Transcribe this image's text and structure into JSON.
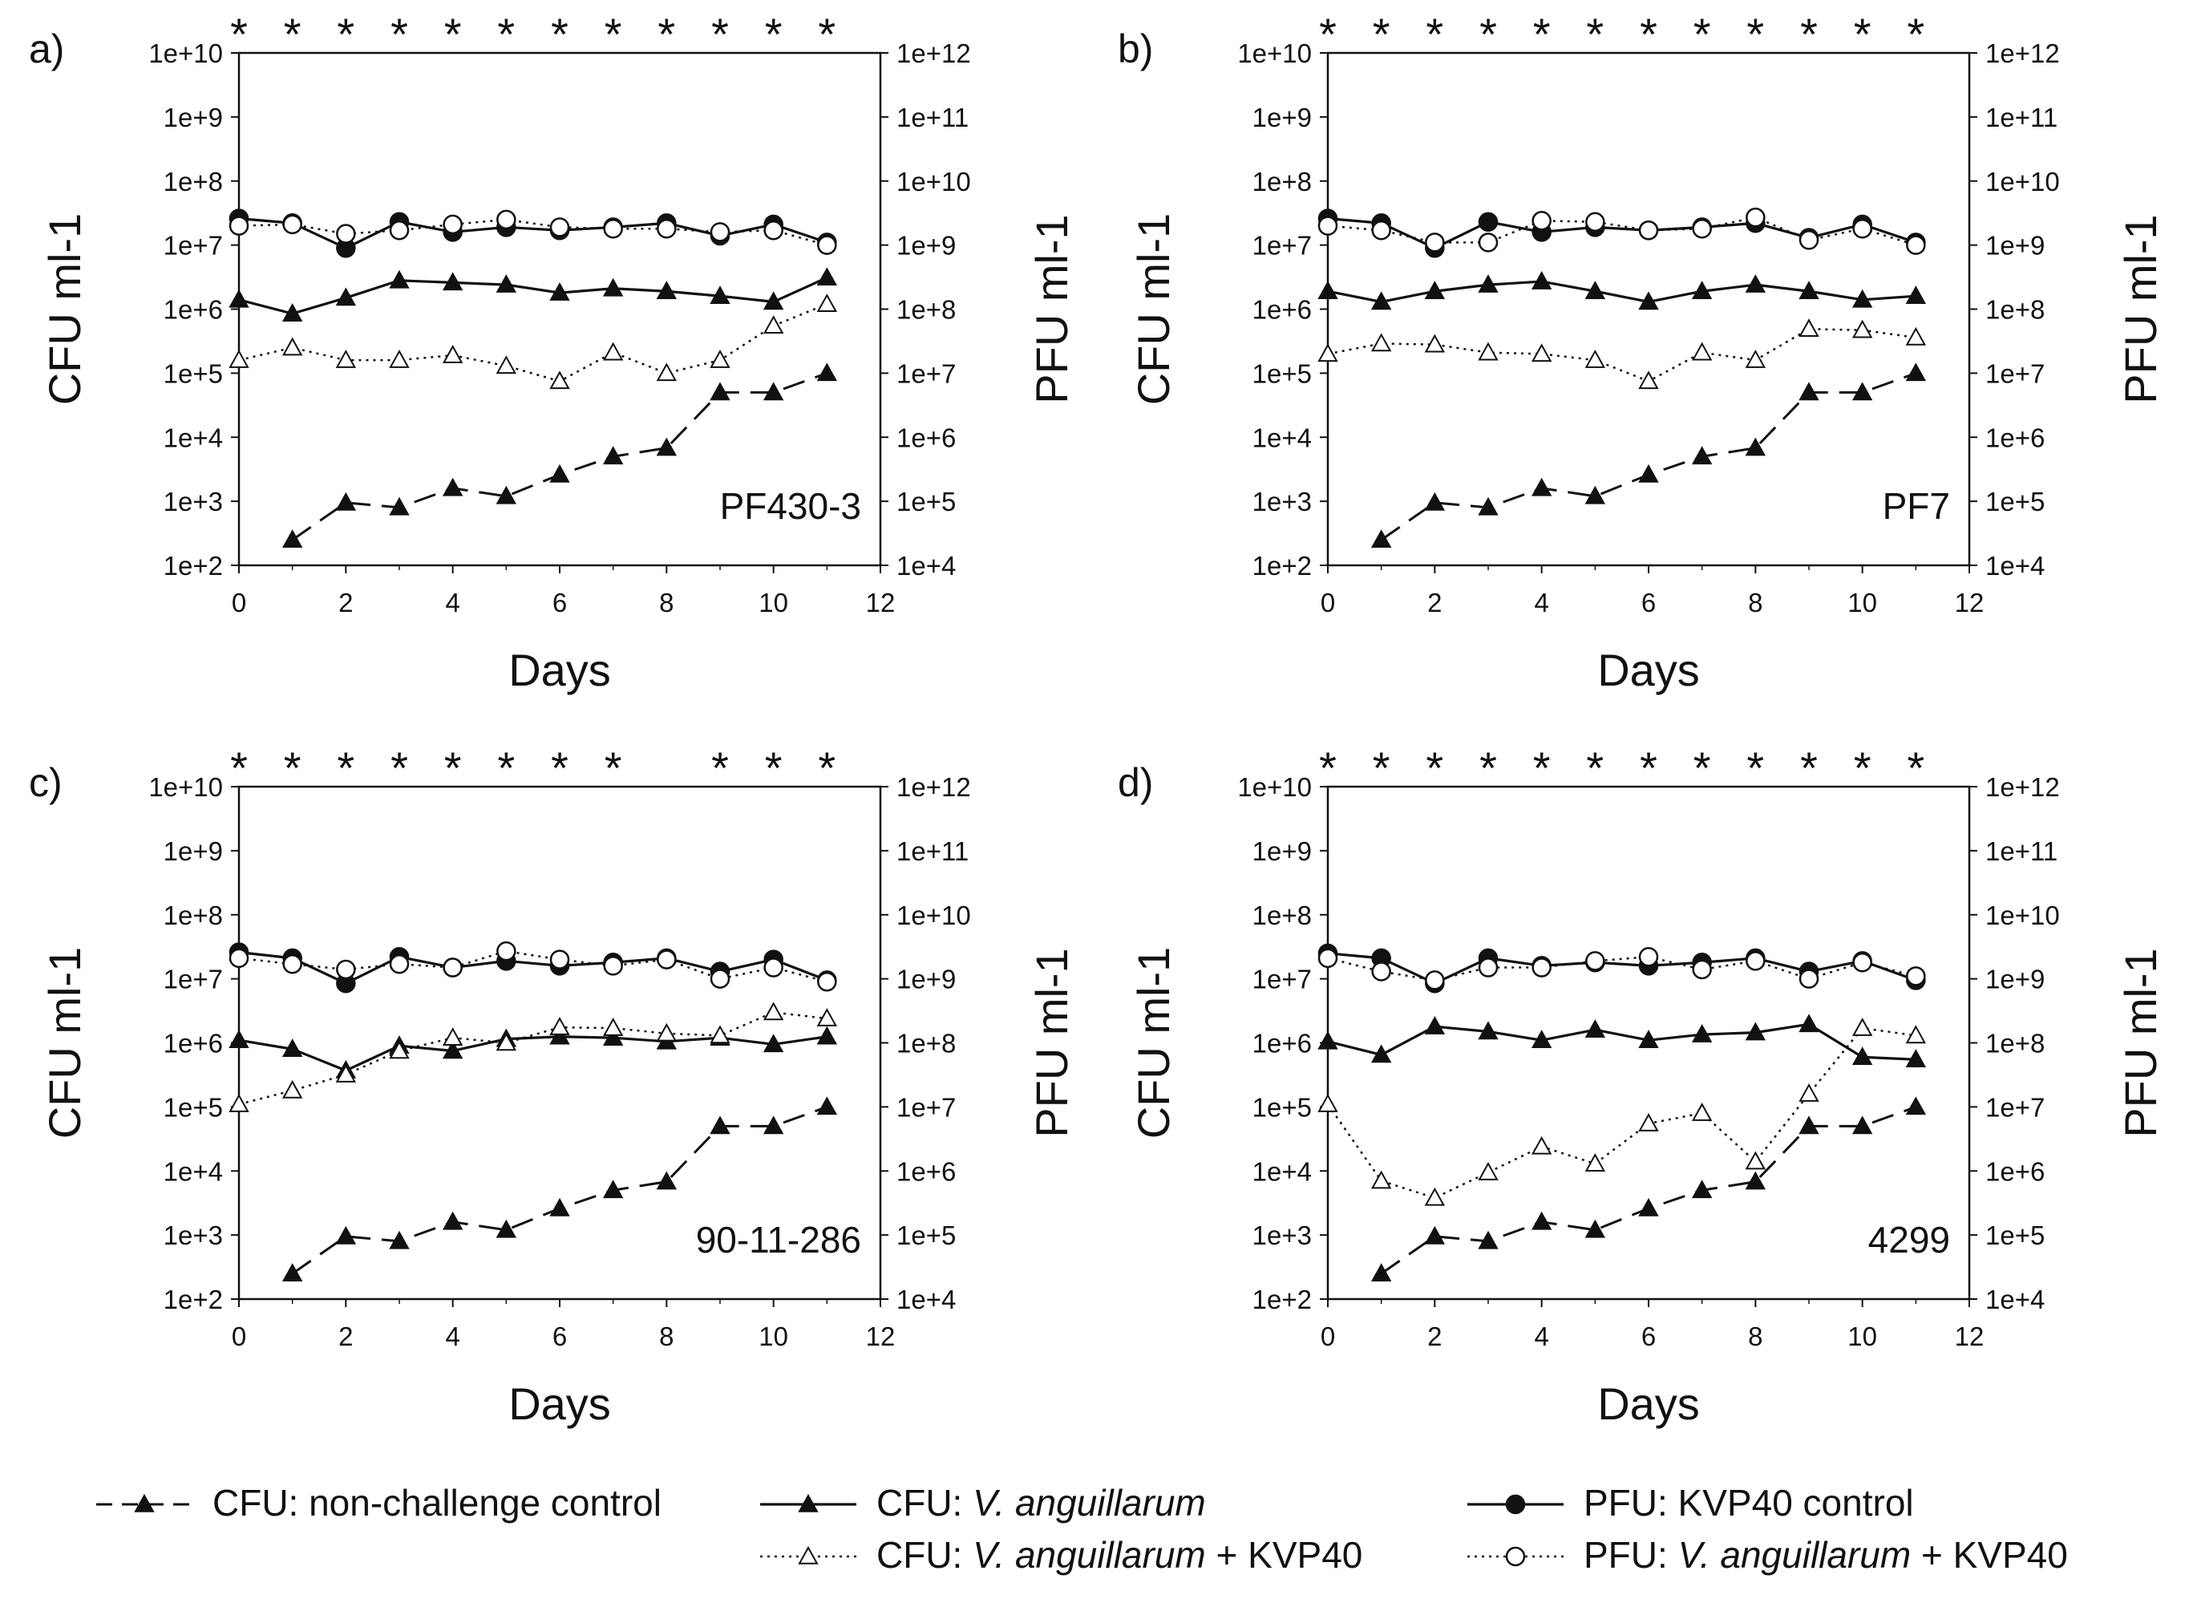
{
  "figure": {
    "legend": {
      "items": [
        {
          "key": "ctrl",
          "prefix": "CFU: non-challenge control",
          "italic": "",
          "suffix": "",
          "line": "dashed",
          "marker": "triangle-filled"
        },
        {
          "key": "va",
          "prefix": "CFU: ",
          "italic": "V. anguillarum",
          "suffix": "",
          "line": "solid",
          "marker": "triangle-filled"
        },
        {
          "key": "kvp",
          "prefix": "PFU: KVP40 control",
          "italic": "",
          "suffix": "",
          "line": "solid",
          "marker": "circle-filled"
        },
        {
          "key": "va_kvp",
          "prefix": "CFU: ",
          "italic": "V. anguillarum",
          "suffix": " + KVP40",
          "line": "dotted",
          "marker": "triangle-open"
        },
        {
          "key": "pfu_va_kvp",
          "prefix": "PFU: ",
          "italic": "V. anguillarum",
          "suffix": " + KVP40",
          "line": "dotted",
          "marker": "circle-open"
        }
      ]
    }
  },
  "chart_data": [
    {
      "type": "line",
      "panel": "a)",
      "strain": "PF430-3",
      "xlabel": "Days",
      "ylabel_left": "CFU ml-1",
      "ylabel_right": "PFU ml-1",
      "xlim": [
        0,
        12
      ],
      "xticks": [
        "0",
        "2",
        "4",
        "6",
        "8",
        "10",
        "12"
      ],
      "ylim_left_log10": [
        2,
        10
      ],
      "yticks_left": [
        "1e+2",
        "1e+3",
        "1e+4",
        "1e+5",
        "1e+6",
        "1e+7",
        "1e+8",
        "1e+9",
        "1e+10"
      ],
      "ylim_right_log10": [
        4,
        12
      ],
      "yticks_right": [
        "1e+4",
        "1e+5",
        "1e+6",
        "1e+7",
        "1e+8",
        "1e+9",
        "1e+10",
        "1e+11",
        "1e+12"
      ],
      "significance_days": [
        0,
        1,
        2,
        3,
        4,
        5,
        6,
        7,
        8,
        9,
        10,
        11
      ],
      "significance_symbol": "*",
      "series": [
        {
          "name": "CFU: non-challenge control",
          "axis": "left",
          "x": [
            1,
            2,
            3,
            4,
            5,
            6,
            7,
            8,
            9,
            10,
            11
          ],
          "y": [
            250,
            950,
            800,
            1600,
            1200,
            2600,
            5000,
            6800,
            50000,
            50000,
            100000
          ]
        },
        {
          "name": "CFU: V. anguillarum",
          "axis": "left",
          "x": [
            0,
            1,
            2,
            3,
            4,
            5,
            6,
            7,
            8,
            9,
            10,
            11
          ],
          "y": [
            1400000,
            850000,
            1500000,
            2800000,
            2600000,
            2400000,
            1800000,
            2100000,
            1900000,
            1600000,
            1300000,
            3100000
          ]
        },
        {
          "name": "PFU: KVP40 control",
          "axis": "right",
          "x": [
            0,
            1,
            2,
            3,
            4,
            5,
            6,
            7,
            8,
            9,
            10,
            11
          ],
          "y": [
            2600000000,
            2200000000,
            900000000,
            2300000000,
            1600000000,
            1900000000,
            1700000000,
            1900000000,
            2200000000,
            1400000000,
            2100000000,
            1100000000
          ]
        },
        {
          "name": "CFU: V. anguillarum + KVP40",
          "axis": "left",
          "x": [
            0,
            1,
            2,
            3,
            4,
            5,
            6,
            7,
            8,
            9,
            10,
            11
          ],
          "y": [
            160000,
            250000,
            160000,
            160000,
            190000,
            130000,
            75000,
            210000,
            100000,
            160000,
            550000,
            1200000
          ]
        },
        {
          "name": "PFU: V. anguillarum + KVP40",
          "axis": "right",
          "x": [
            0,
            1,
            2,
            3,
            4,
            5,
            6,
            7,
            8,
            9,
            10,
            11
          ],
          "y": [
            2000000000,
            2100000000,
            1500000000,
            1700000000,
            2100000000,
            2500000000,
            1900000000,
            1800000000,
            1800000000,
            1600000000,
            1700000000,
            1000000000
          ]
        }
      ]
    },
    {
      "type": "line",
      "panel": "b)",
      "strain": "PF7",
      "xlabel": "Days",
      "ylabel_left": "CFU ml-1",
      "ylabel_right": "PFU ml-1",
      "xlim": [
        0,
        12
      ],
      "xticks": [
        "0",
        "2",
        "4",
        "6",
        "8",
        "10",
        "12"
      ],
      "ylim_left_log10": [
        2,
        10
      ],
      "yticks_left": [
        "1e+2",
        "1e+3",
        "1e+4",
        "1e+5",
        "1e+6",
        "1e+7",
        "1e+8",
        "1e+9",
        "1e+10"
      ],
      "ylim_right_log10": [
        4,
        12
      ],
      "yticks_right": [
        "1e+4",
        "1e+5",
        "1e+6",
        "1e+7",
        "1e+8",
        "1e+9",
        "1e+10",
        "1e+11",
        "1e+12"
      ],
      "significance_days": [
        0,
        1,
        2,
        3,
        4,
        5,
        6,
        7,
        8,
        9,
        10,
        11
      ],
      "significance_symbol": "*",
      "series": [
        {
          "name": "CFU: non-challenge control",
          "axis": "left",
          "x": [
            1,
            2,
            3,
            4,
            5,
            6,
            7,
            8,
            9,
            10,
            11
          ],
          "y": [
            250,
            950,
            800,
            1600,
            1200,
            2600,
            5000,
            6800,
            50000,
            50000,
            100000
          ]
        },
        {
          "name": "CFU: V. anguillarum",
          "axis": "left",
          "x": [
            0,
            1,
            2,
            3,
            4,
            5,
            6,
            7,
            8,
            9,
            10,
            11
          ],
          "y": [
            1900000,
            1300000,
            1900000,
            2400000,
            2700000,
            1900000,
            1300000,
            1900000,
            2400000,
            1900000,
            1400000,
            1600000
          ]
        },
        {
          "name": "PFU: KVP40 control",
          "axis": "right",
          "x": [
            0,
            1,
            2,
            3,
            4,
            5,
            6,
            7,
            8,
            9,
            10,
            11
          ],
          "y": [
            2600000000,
            2200000000,
            900000000,
            2300000000,
            1600000000,
            1900000000,
            1700000000,
            1900000000,
            2200000000,
            1300000000,
            2100000000,
            1100000000
          ]
        },
        {
          "name": "CFU: V. anguillarum + KVP40",
          "axis": "left",
          "x": [
            0,
            1,
            2,
            3,
            4,
            5,
            6,
            7,
            8,
            9,
            10,
            11
          ],
          "y": [
            200000,
            290000,
            280000,
            210000,
            200000,
            160000,
            75000,
            210000,
            160000,
            490000,
            470000,
            360000
          ]
        },
        {
          "name": "PFU: V. anguillarum + KVP40",
          "axis": "right",
          "x": [
            0,
            1,
            2,
            3,
            4,
            5,
            6,
            7,
            8,
            9,
            10,
            11
          ],
          "y": [
            2000000000,
            1700000000,
            1100000000,
            1100000000,
            2400000000,
            2300000000,
            1700000000,
            1800000000,
            2700000000,
            1200000000,
            1800000000,
            1000000000
          ]
        }
      ]
    },
    {
      "type": "line",
      "panel": "c)",
      "strain": "90-11-286",
      "xlabel": "Days",
      "ylabel_left": "CFU ml-1",
      "ylabel_right": "PFU ml-1",
      "xlim": [
        0,
        12
      ],
      "xticks": [
        "0",
        "2",
        "4",
        "6",
        "8",
        "10",
        "12"
      ],
      "ylim_left_log10": [
        2,
        10
      ],
      "yticks_left": [
        "1e+2",
        "1e+3",
        "1e+4",
        "1e+5",
        "1e+6",
        "1e+7",
        "1e+8",
        "1e+9",
        "1e+10"
      ],
      "ylim_right_log10": [
        4,
        12
      ],
      "yticks_right": [
        "1e+4",
        "1e+5",
        "1e+6",
        "1e+7",
        "1e+8",
        "1e+9",
        "1e+10",
        "1e+11",
        "1e+12"
      ],
      "significance_days": [
        0,
        1,
        2,
        3,
        4,
        5,
        6,
        7,
        9,
        10,
        11
      ],
      "significance_symbol": "*",
      "series": [
        {
          "name": "CFU: non-challenge control",
          "axis": "left",
          "x": [
            1,
            2,
            3,
            4,
            5,
            6,
            7,
            8,
            9,
            10,
            11
          ],
          "y": [
            250,
            950,
            800,
            1600,
            1200,
            2600,
            5000,
            6800,
            50000,
            50000,
            100000
          ]
        },
        {
          "name": "CFU: V. anguillarum",
          "axis": "left",
          "x": [
            0,
            1,
            2,
            3,
            4,
            5,
            6,
            7,
            8,
            9,
            10,
            11
          ],
          "y": [
            1100000,
            800000,
            370000,
            900000,
            750000,
            1150000,
            1250000,
            1200000,
            1050000,
            1200000,
            950000,
            1250000
          ]
        },
        {
          "name": "PFU: KVP40 control",
          "axis": "right",
          "x": [
            0,
            1,
            2,
            3,
            4,
            5,
            6,
            7,
            8,
            9,
            10,
            11
          ],
          "y": [
            2600000000,
            2100000000,
            850000000,
            2200000000,
            1500000000,
            1900000000,
            1600000000,
            1800000000,
            2100000000,
            1300000000,
            2000000000,
            950000000
          ]
        },
        {
          "name": "CFU: V. anguillarum + KVP40",
          "axis": "left",
          "x": [
            0,
            1,
            2,
            3,
            4,
            5,
            6,
            7,
            8,
            9,
            10,
            11
          ],
          "y": [
            110000,
            180000,
            320000,
            750000,
            1200000,
            1000000,
            1750000,
            1700000,
            1400000,
            1300000,
            3000000,
            2400000
          ]
        },
        {
          "name": "PFU: V. anguillarum + KVP40",
          "axis": "right",
          "x": [
            0,
            1,
            2,
            3,
            4,
            5,
            6,
            7,
            8,
            9,
            10,
            11
          ],
          "y": [
            2100000000,
            1700000000,
            1400000000,
            1700000000,
            1500000000,
            2700000000,
            2000000000,
            1600000000,
            2000000000,
            1000000000,
            1500000000,
            900000000
          ]
        }
      ]
    },
    {
      "type": "line",
      "panel": "d)",
      "strain": "4299",
      "xlabel": "Days",
      "ylabel_left": "CFU ml-1",
      "ylabel_right": "PFU ml-1",
      "xlim": [
        0,
        12
      ],
      "xticks": [
        "0",
        "2",
        "4",
        "6",
        "8",
        "10",
        "12"
      ],
      "ylim_left_log10": [
        2,
        10
      ],
      "yticks_left": [
        "1e+2",
        "1e+3",
        "1e+4",
        "1e+5",
        "1e+6",
        "1e+7",
        "1e+8",
        "1e+9",
        "1e+10"
      ],
      "ylim_right_log10": [
        4,
        12
      ],
      "yticks_right": [
        "1e+4",
        "1e+5",
        "1e+6",
        "1e+7",
        "1e+8",
        "1e+9",
        "1e+10",
        "1e+11",
        "1e+12"
      ],
      "significance_days": [
        0,
        1,
        2,
        3,
        4,
        5,
        6,
        7,
        8,
        9,
        10,
        11
      ],
      "significance_symbol": "*",
      "series": [
        {
          "name": "CFU: non-challenge control",
          "axis": "left",
          "x": [
            1,
            2,
            3,
            4,
            5,
            6,
            7,
            8,
            9,
            10,
            11
          ],
          "y": [
            250,
            950,
            800,
            1600,
            1200,
            2600,
            5000,
            6800,
            50000,
            50000,
            100000
          ]
        },
        {
          "name": "CFU: V. anguillarum",
          "axis": "left",
          "x": [
            0,
            1,
            2,
            3,
            4,
            5,
            6,
            7,
            8,
            9,
            10,
            11
          ],
          "y": [
            1050000,
            650000,
            1800000,
            1500000,
            1100000,
            1600000,
            1100000,
            1350000,
            1450000,
            1950000,
            600000,
            550000
          ]
        },
        {
          "name": "PFU: KVP40 control",
          "axis": "right",
          "x": [
            0,
            1,
            2,
            3,
            4,
            5,
            6,
            7,
            8,
            9,
            10,
            11
          ],
          "y": [
            2500000000,
            2100000000,
            850000000,
            2100000000,
            1600000000,
            1800000000,
            1600000000,
            1800000000,
            2100000000,
            1300000000,
            1900000000,
            950000000
          ]
        },
        {
          "name": "CFU: V. anguillarum + KVP40",
          "axis": "left",
          "x": [
            0,
            1,
            2,
            3,
            4,
            5,
            6,
            7,
            8,
            9,
            10,
            11
          ],
          "y": [
            110000,
            7000,
            3800,
            9500,
            24000,
            13000,
            55000,
            80000,
            14000,
            160000,
            1700000,
            1300000
          ]
        },
        {
          "name": "PFU: V. anguillarum + KVP40",
          "axis": "right",
          "x": [
            0,
            1,
            2,
            3,
            4,
            5,
            6,
            7,
            8,
            9,
            10,
            11
          ],
          "y": [
            2100000000,
            1300000000,
            950000000,
            1500000000,
            1500000000,
            1900000000,
            2200000000,
            1400000000,
            1900000000,
            1000000000,
            1800000000,
            1100000000
          ]
        }
      ]
    }
  ]
}
